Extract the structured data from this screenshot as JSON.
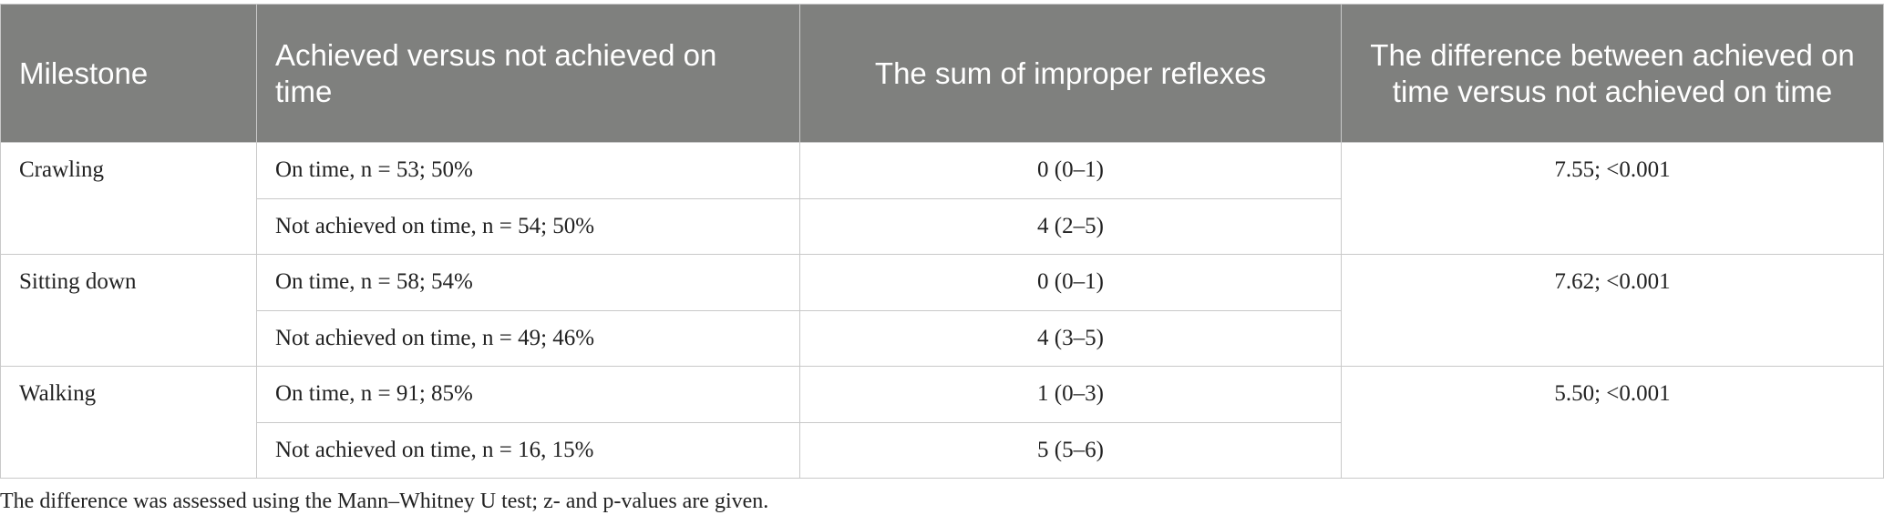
{
  "table": {
    "header": [
      "Milestone",
      "Achieved versus not achieved on time",
      "The sum of improper reflexes",
      "The difference between achieved on time versus not achieved on time"
    ],
    "groups": [
      {
        "milestone": "Crawling",
        "difference": "7.55; <0.001",
        "rows": [
          {
            "status": "On time, n = 53; 50%",
            "sum": "0 (0–1)"
          },
          {
            "status": "Not achieved on time, n = 54; 50%",
            "sum": "4 (2–5)"
          }
        ]
      },
      {
        "milestone": "Sitting down",
        "difference": "7.62; <0.001",
        "rows": [
          {
            "status": "On time, n = 58; 54%",
            "sum": "0 (0–1)"
          },
          {
            "status": "Not achieved on time, n = 49; 46%",
            "sum": "4 (3–5)"
          }
        ]
      },
      {
        "milestone": "Walking",
        "difference": "5.50; <0.001",
        "rows": [
          {
            "status": "On time, n = 91; 85%",
            "sum": "1 (0–3)"
          },
          {
            "status": "Not achieved on time, n = 16, 15%",
            "sum": "5 (5–6)"
          }
        ]
      }
    ]
  },
  "footnote": "The difference was assessed using the Mann–Whitney U test; z- and p-values are given."
}
